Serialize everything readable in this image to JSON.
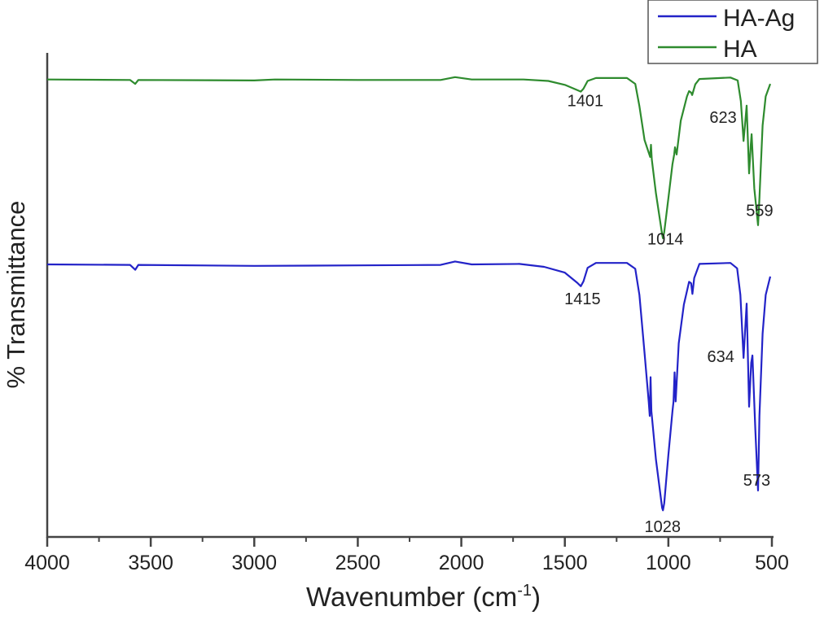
{
  "chart_data": {
    "type": "line",
    "title": "",
    "xlabel": "Wavenumber (cm",
    "xlabel_sup": "-1",
    "xlabel_end": ")",
    "ylabel": "% Transmittance",
    "xlim": [
      4000,
      500
    ],
    "ylim": [
      0,
      100
    ],
    "x_reversed": true,
    "x_ticks": [
      4000,
      3500,
      3000,
      2500,
      2000,
      1500,
      1000,
      500
    ],
    "x_tick_labels": [
      "4000",
      "3500",
      "3000",
      "2500",
      "2000",
      "1500",
      "1000",
      "500"
    ],
    "grid": false,
    "legend_position": "top-right",
    "series": [
      {
        "name": "HA-Ag",
        "color": "#2323c8",
        "points": [
          [
            4000,
            56.3
          ],
          [
            3600,
            56.2
          ],
          [
            3575,
            55.2
          ],
          [
            3560,
            56.2
          ],
          [
            3000,
            56.0
          ],
          [
            2500,
            56.1
          ],
          [
            2100,
            56.2
          ],
          [
            2030,
            56.9
          ],
          [
            1950,
            56.3
          ],
          [
            1720,
            56.4
          ],
          [
            1600,
            55.8
          ],
          [
            1500,
            54.6
          ],
          [
            1440,
            52.5
          ],
          [
            1423,
            51.8
          ],
          [
            1410,
            52.8
          ],
          [
            1390,
            55.6
          ],
          [
            1350,
            56.6
          ],
          [
            1200,
            56.6
          ],
          [
            1160,
            55.4
          ],
          [
            1140,
            50
          ],
          [
            1115,
            38
          ],
          [
            1095,
            28
          ],
          [
            1090,
            25
          ],
          [
            1086,
            33
          ],
          [
            1082,
            26
          ],
          [
            1060,
            16
          ],
          [
            1030,
            6
          ],
          [
            1026,
            5.5
          ],
          [
            1020,
            7
          ],
          [
            1000,
            17
          ],
          [
            980,
            26
          ],
          [
            975,
            28
          ],
          [
            970,
            34
          ],
          [
            965,
            28
          ],
          [
            950,
            40
          ],
          [
            925,
            48
          ],
          [
            900,
            52.7
          ],
          [
            890,
            52.4
          ],
          [
            884,
            50.2
          ],
          [
            875,
            53.5
          ],
          [
            850,
            56.4
          ],
          [
            700,
            56.6
          ],
          [
            668,
            55.5
          ],
          [
            652,
            50
          ],
          [
            637,
            37
          ],
          [
            630,
            42
          ],
          [
            622,
            48.2
          ],
          [
            610,
            26.9
          ],
          [
            600,
            36
          ],
          [
            594,
            37.5
          ],
          [
            580,
            22
          ],
          [
            567,
            9.6
          ],
          [
            560,
            25
          ],
          [
            545,
            42
          ],
          [
            530,
            50
          ],
          [
            508,
            53.8
          ]
        ],
        "peak_labels": [
          {
            "x": 1415,
            "text": "1415"
          },
          {
            "x": 1028,
            "text": "1028"
          },
          {
            "x": 634,
            "text": "634"
          },
          {
            "x": 573,
            "text": "573"
          }
        ]
      },
      {
        "name": "HA",
        "color": "#2e8b2e",
        "points": [
          [
            4000,
            94.5
          ],
          [
            3600,
            94.4
          ],
          [
            3575,
            93.6
          ],
          [
            3560,
            94.4
          ],
          [
            3000,
            94.3
          ],
          [
            2900,
            94.5
          ],
          [
            2500,
            94.4
          ],
          [
            2100,
            94.4
          ],
          [
            2030,
            95.0
          ],
          [
            1950,
            94.5
          ],
          [
            1700,
            94.5
          ],
          [
            1580,
            94.2
          ],
          [
            1500,
            93.4
          ],
          [
            1440,
            92.3
          ],
          [
            1423,
            92.0
          ],
          [
            1410,
            92.6
          ],
          [
            1390,
            94.2
          ],
          [
            1350,
            94.8
          ],
          [
            1200,
            94.8
          ],
          [
            1160,
            93.6
          ],
          [
            1140,
            89
          ],
          [
            1115,
            82
          ],
          [
            1092,
            79
          ],
          [
            1088,
            78.5
          ],
          [
            1084,
            81
          ],
          [
            1080,
            78
          ],
          [
            1060,
            71
          ],
          [
            1030,
            62.5
          ],
          [
            1026,
            61.7
          ],
          [
            1020,
            63
          ],
          [
            1000,
            70
          ],
          [
            980,
            77
          ],
          [
            972,
            79
          ],
          [
            968,
            80.5
          ],
          [
            960,
            79
          ],
          [
            940,
            86
          ],
          [
            910,
            91
          ],
          [
            900,
            92.1
          ],
          [
            890,
            91.8
          ],
          [
            885,
            91.3
          ],
          [
            870,
            93.5
          ],
          [
            850,
            94.6
          ],
          [
            700,
            94.9
          ],
          [
            665,
            94.3
          ],
          [
            650,
            90
          ],
          [
            637,
            81.8
          ],
          [
            630,
            85
          ],
          [
            622,
            89.1
          ],
          [
            610,
            75.1
          ],
          [
            602,
            81
          ],
          [
            598,
            83.2
          ],
          [
            585,
            72
          ],
          [
            567,
            64.4
          ],
          [
            560,
            70
          ],
          [
            545,
            85
          ],
          [
            530,
            91
          ],
          [
            508,
            93.6
          ]
        ],
        "peak_labels": [
          {
            "x": 1401,
            "text": "1401"
          },
          {
            "x": 1014,
            "text": "1014"
          },
          {
            "x": 623,
            "text": "623"
          },
          {
            "x": 559,
            "text": "559"
          }
        ]
      }
    ]
  }
}
